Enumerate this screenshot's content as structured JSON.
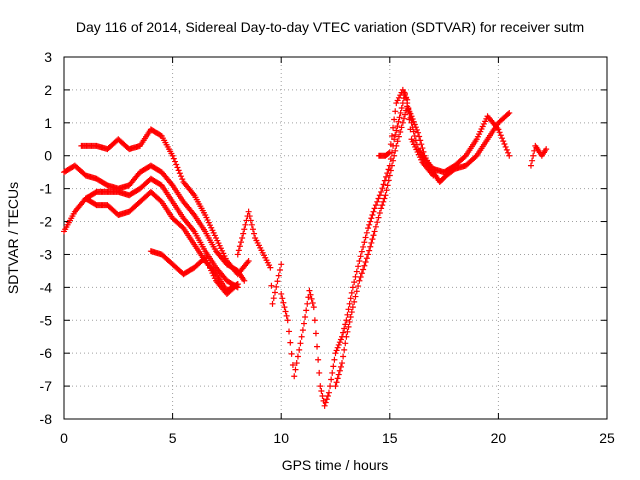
{
  "chart_data": {
    "type": "scatter",
    "title": "Day 116 of 2014, Sidereal Day-to-day VTEC variation (SDTVAR) for receiver sutm",
    "xlabel": "GPS time / hours",
    "ylabel": "SDTVAR / TECUs",
    "xlim": [
      0,
      25
    ],
    "ylim": [
      -8,
      3
    ],
    "x_ticks": [
      "0",
      "5",
      "10",
      "15",
      "20",
      "25"
    ],
    "y_ticks": [
      "3",
      "2",
      "1",
      "0",
      "-1",
      "-2",
      "-3",
      "-4",
      "-5",
      "-6",
      "-7",
      "-8"
    ],
    "grid": true,
    "marker": "+",
    "color": "#ff0000",
    "series": [
      {
        "values": [
          [
            0.0,
            -0.5
          ],
          [
            0.5,
            -0.3
          ],
          [
            1.0,
            -0.6
          ],
          [
            1.5,
            -0.7
          ],
          [
            2.0,
            -0.9
          ],
          [
            2.5,
            -1.0
          ],
          [
            3.0,
            -0.9
          ],
          [
            3.5,
            -0.5
          ],
          [
            4.0,
            -0.3
          ],
          [
            4.5,
            -0.5
          ],
          [
            5.0,
            -0.9
          ],
          [
            5.5,
            -1.4
          ],
          [
            6.0,
            -1.8
          ],
          [
            6.5,
            -2.3
          ],
          [
            7.0,
            -2.9
          ],
          [
            7.5,
            -3.3
          ],
          [
            8.0,
            -3.5
          ],
          [
            8.3,
            -3.8
          ]
        ]
      },
      {
        "values": [
          [
            0.0,
            -2.3
          ],
          [
            0.5,
            -1.7
          ],
          [
            1.0,
            -1.3
          ],
          [
            1.5,
            -1.1
          ],
          [
            2.0,
            -1.1
          ],
          [
            2.5,
            -1.1
          ],
          [
            3.0,
            -1.2
          ],
          [
            3.5,
            -1.0
          ],
          [
            4.0,
            -0.7
          ],
          [
            4.5,
            -0.9
          ],
          [
            5.0,
            -1.4
          ],
          [
            5.5,
            -1.9
          ],
          [
            6.0,
            -2.3
          ],
          [
            6.5,
            -2.9
          ],
          [
            7.0,
            -3.4
          ],
          [
            7.5,
            -3.8
          ],
          [
            8.0,
            -4.0
          ]
        ]
      },
      {
        "values": [
          [
            0.8,
            0.3
          ],
          [
            1.5,
            0.3
          ],
          [
            2.0,
            0.2
          ],
          [
            2.5,
            0.5
          ],
          [
            3.0,
            0.2
          ],
          [
            3.5,
            0.3
          ],
          [
            4.0,
            0.8
          ],
          [
            4.5,
            0.6
          ],
          [
            5.0,
            0.0
          ],
          [
            5.5,
            -0.8
          ],
          [
            6.0,
            -1.2
          ],
          [
            6.5,
            -1.8
          ],
          [
            7.0,
            -2.5
          ],
          [
            7.5,
            -3.2
          ],
          [
            8.0,
            -3.6
          ],
          [
            8.5,
            -3.2
          ]
        ]
      },
      {
        "values": [
          [
            1.0,
            -1.3
          ],
          [
            1.5,
            -1.5
          ],
          [
            2.0,
            -1.5
          ],
          [
            2.5,
            -1.8
          ],
          [
            3.0,
            -1.7
          ],
          [
            3.5,
            -1.4
          ],
          [
            4.0,
            -1.1
          ],
          [
            4.5,
            -1.4
          ],
          [
            5.0,
            -1.9
          ],
          [
            5.5,
            -2.2
          ],
          [
            6.0,
            -2.7
          ],
          [
            6.5,
            -3.2
          ],
          [
            7.0,
            -3.6
          ],
          [
            7.5,
            -4.1
          ],
          [
            8.0,
            -3.9
          ]
        ]
      },
      {
        "values": [
          [
            4.0,
            -2.9
          ],
          [
            4.5,
            -3.0
          ],
          [
            5.0,
            -3.3
          ],
          [
            5.5,
            -3.6
          ],
          [
            6.0,
            -3.4
          ],
          [
            6.5,
            -3.1
          ],
          [
            7.0,
            -3.8
          ],
          [
            7.5,
            -4.2
          ],
          [
            8.0,
            -3.9
          ]
        ]
      },
      {
        "values": [
          [
            8.0,
            -3.0
          ],
          [
            8.2,
            -2.5
          ],
          [
            8.5,
            -1.7
          ],
          [
            8.8,
            -2.5
          ],
          [
            9.5,
            -3.4
          ],
          [
            9.6,
            -4.5
          ],
          [
            10.0,
            -3.3
          ],
          [
            10.0,
            -4.2
          ],
          [
            10.3,
            -5.0
          ],
          [
            10.6,
            -6.7
          ],
          [
            11.0,
            -5.3
          ],
          [
            11.3,
            -4.1
          ],
          [
            11.5,
            -4.6
          ],
          [
            11.8,
            -7.0
          ],
          [
            12.0,
            -7.6
          ],
          [
            12.2,
            -7.2
          ],
          [
            12.5,
            -6.0
          ],
          [
            12.8,
            -5.5
          ],
          [
            13.0,
            -5.0
          ],
          [
            13.3,
            -4.0
          ],
          [
            13.6,
            -3.2
          ],
          [
            14.0,
            -2.2
          ],
          [
            14.3,
            -1.6
          ],
          [
            14.6,
            -1.1
          ],
          [
            15.0,
            -0.3
          ],
          [
            15.2,
            0.5
          ],
          [
            15.5,
            1.3
          ],
          [
            15.7,
            1.9
          ],
          [
            16.0,
            1.0
          ],
          [
            16.3,
            0.2
          ],
          [
            16.6,
            -0.1
          ],
          [
            17.0,
            -0.4
          ],
          [
            17.5,
            -0.5
          ],
          [
            18.0,
            -0.3
          ],
          [
            18.5,
            0.0
          ],
          [
            19.0,
            0.5
          ],
          [
            19.5,
            1.2
          ],
          [
            20.0,
            0.8
          ],
          [
            20.5,
            0.0
          ]
        ]
      },
      {
        "values": [
          [
            12.5,
            -7.0
          ],
          [
            12.8,
            -6.3
          ],
          [
            13.0,
            -5.5
          ],
          [
            13.3,
            -4.6
          ],
          [
            13.6,
            -3.8
          ],
          [
            14.0,
            -3.0
          ],
          [
            14.3,
            -2.3
          ],
          [
            14.6,
            -1.6
          ],
          [
            14.8,
            -1.2
          ],
          [
            15.0,
            -0.6
          ],
          [
            15.3,
            0.3
          ],
          [
            15.6,
            1.0
          ],
          [
            15.8,
            1.5
          ],
          [
            16.0,
            1.2
          ],
          [
            16.3,
            0.7
          ],
          [
            16.6,
            0.0
          ],
          [
            17.0,
            -0.5
          ],
          [
            17.3,
            -0.8
          ],
          [
            17.6,
            -0.6
          ],
          [
            18.0,
            -0.4
          ],
          [
            18.5,
            -0.3
          ],
          [
            19.0,
            0.0
          ],
          [
            19.5,
            0.5
          ],
          [
            20.0,
            1.0
          ],
          [
            20.5,
            1.3
          ]
        ]
      },
      {
        "values": [
          [
            14.5,
            0.0
          ],
          [
            14.8,
            0.0
          ],
          [
            15.0,
            0.1
          ],
          [
            15.3,
            1.6
          ],
          [
            15.6,
            2.0
          ],
          [
            15.8,
            1.7
          ],
          [
            16.0,
            0.5
          ],
          [
            16.5,
            -0.2
          ],
          [
            17.0,
            -0.6
          ]
        ]
      },
      {
        "values": [
          [
            21.5,
            -0.3
          ],
          [
            21.7,
            0.3
          ],
          [
            22.0,
            0.0
          ],
          [
            22.2,
            0.2
          ]
        ]
      }
    ]
  }
}
